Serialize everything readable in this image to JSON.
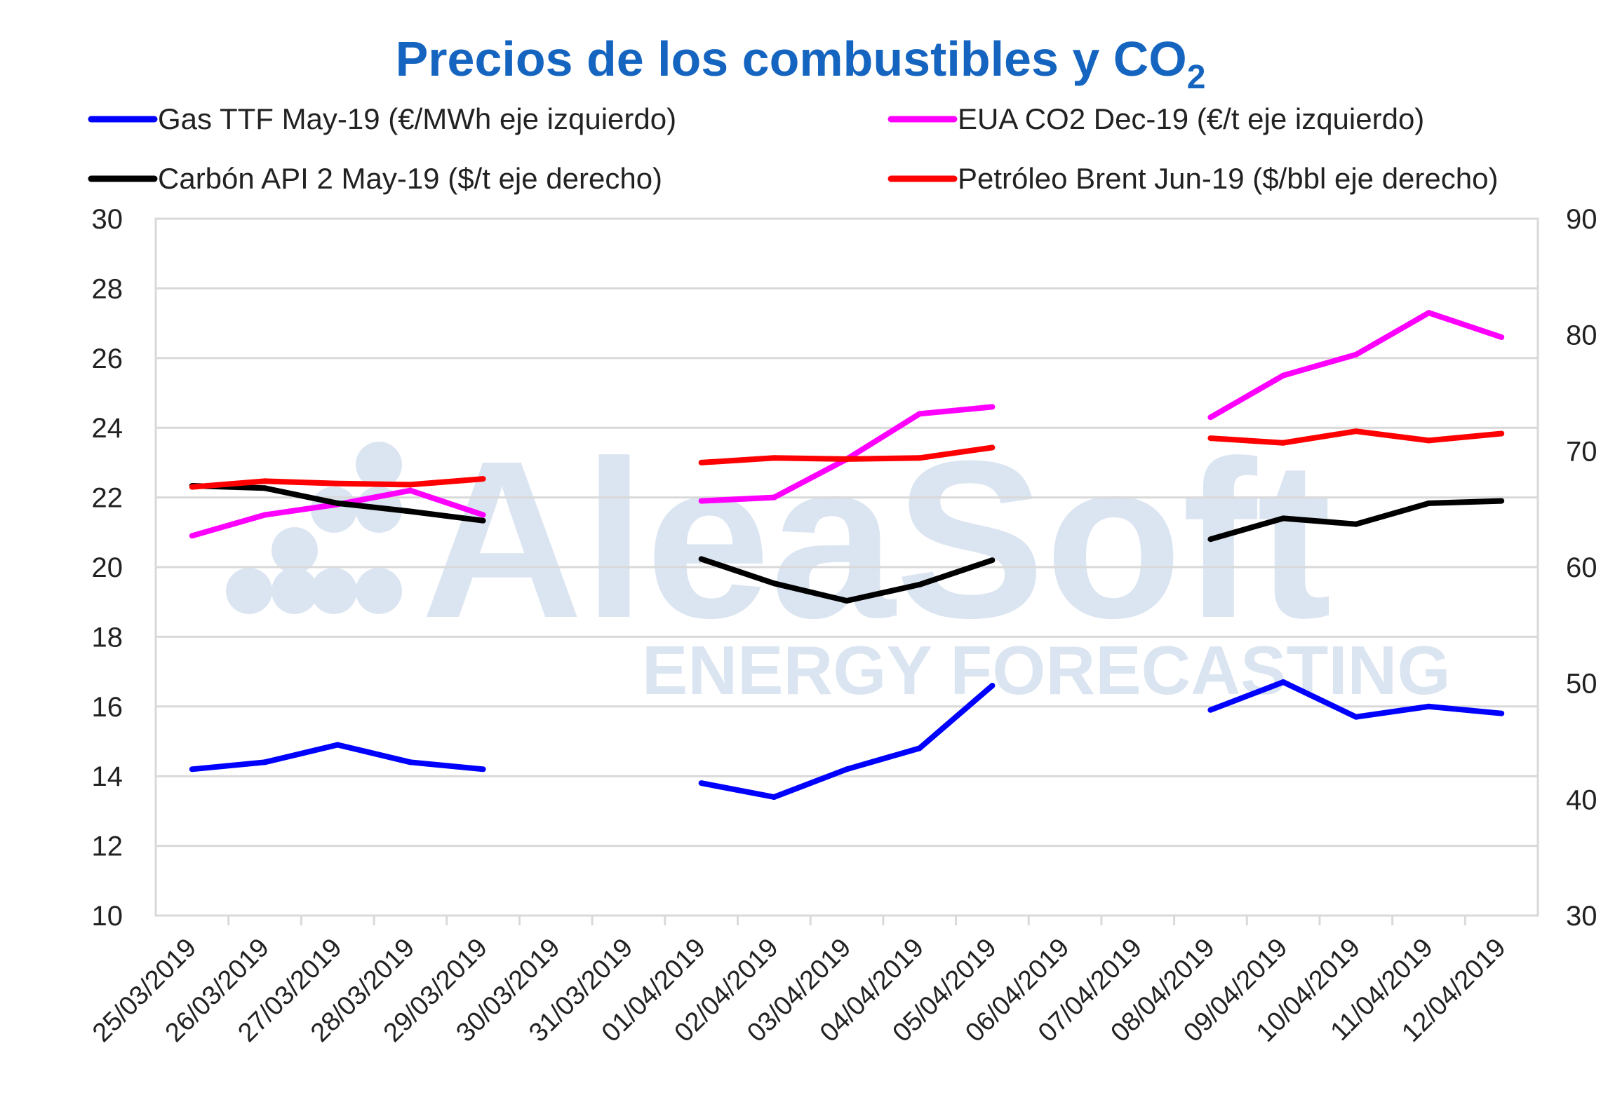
{
  "chart_data": {
    "type": "line",
    "title": "Precios de los combustibles y CO",
    "title_subscript": "2",
    "watermark": {
      "brand": "AleaSoft",
      "tagline": "ENERGY FORECASTING"
    },
    "categories": [
      "25/03/2019",
      "26/03/2019",
      "27/03/2019",
      "28/03/2019",
      "29/03/2019",
      "30/03/2019",
      "31/03/2019",
      "01/04/2019",
      "02/04/2019",
      "03/04/2019",
      "04/04/2019",
      "05/04/2019",
      "06/04/2019",
      "07/04/2019",
      "08/04/2019",
      "09/04/2019",
      "10/04/2019",
      "11/04/2019",
      "12/04/2019"
    ],
    "y_left": {
      "min": 10,
      "max": 30,
      "ticks": [
        "10",
        "12",
        "14",
        "16",
        "18",
        "20",
        "22",
        "24",
        "26",
        "28",
        "30"
      ]
    },
    "y_right": {
      "min": 30,
      "max": 90,
      "ticks": [
        "30",
        "40",
        "50",
        "60",
        "70",
        "80",
        "90"
      ]
    },
    "grid": true,
    "legend_position": "top",
    "series": [
      {
        "name": "Gas TTF May-19 (€/MWh eje izquierdo)",
        "axis": "left",
        "color": "#0000FF",
        "values": [
          14.2,
          14.4,
          14.9,
          14.4,
          14.2,
          null,
          null,
          13.8,
          13.4,
          14.2,
          14.8,
          16.6,
          null,
          null,
          15.9,
          16.7,
          15.7,
          16.0,
          15.8
        ]
      },
      {
        "name": "EUA CO2 Dec-19 (€/t eje izquierdo)",
        "axis": "left",
        "color": "#FF00FF",
        "values": [
          20.9,
          21.5,
          21.8,
          22.2,
          21.5,
          null,
          null,
          21.9,
          22.0,
          23.1,
          24.4,
          24.6,
          null,
          null,
          24.3,
          25.5,
          26.1,
          27.3,
          26.6
        ]
      },
      {
        "name": "Carbón API 2 May-19 ($/t eje derecho)",
        "axis": "right",
        "color": "#000000",
        "values": [
          67.0,
          66.8,
          65.5,
          64.8,
          64.0,
          null,
          null,
          60.7,
          58.6,
          57.1,
          58.5,
          60.6,
          null,
          null,
          62.4,
          64.2,
          63.7,
          65.5,
          65.7
        ]
      },
      {
        "name": "Petróleo Brent Jun-19 ($/bbl eje derecho)",
        "axis": "right",
        "color": "#FF0000",
        "values": [
          66.9,
          67.4,
          67.2,
          67.1,
          67.6,
          null,
          null,
          69.0,
          69.4,
          69.3,
          69.4,
          70.3,
          null,
          null,
          71.1,
          70.7,
          71.7,
          70.9,
          71.5
        ]
      }
    ]
  }
}
